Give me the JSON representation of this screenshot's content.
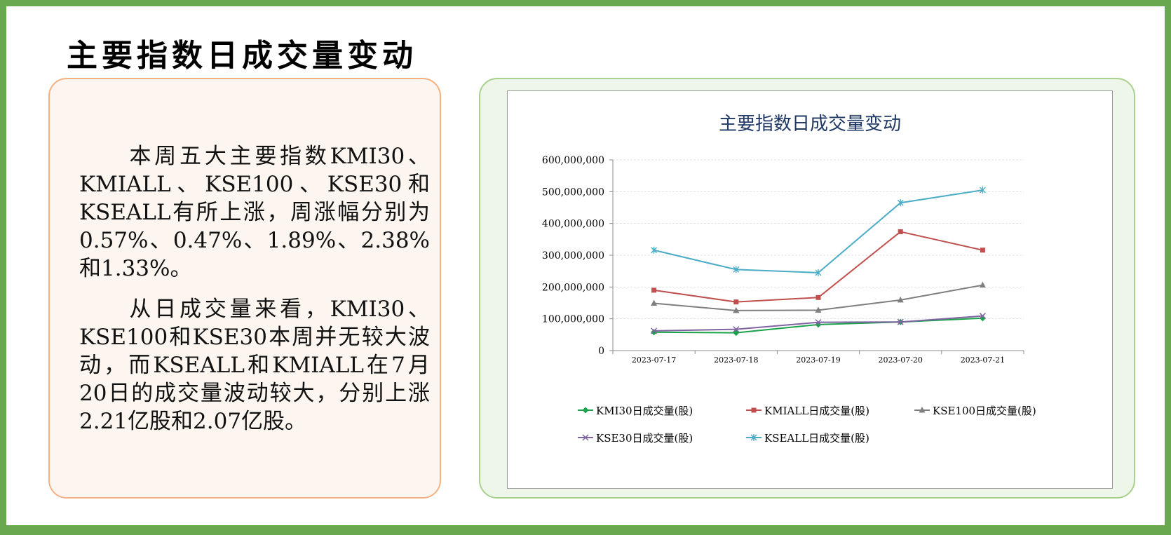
{
  "page": {
    "title": "主要指数日成交量变动"
  },
  "text_panel": {
    "paragraph1": "　　本周五大主要指数KMI30、KMIALL、KSE100、KSE30和KSEALL有所上涨，周涨幅分别为0.57%、0.47%、1.89%、2.38%和1.33%。",
    "paragraph2": "　　从日成交量来看，KMI30、KSE100和KSE30本周并无较大波动，而KSEALL和KMIALL在7月20日的成交量波动较大，分别上涨2.21亿股和2.07亿股。"
  },
  "chart_data": {
    "type": "line",
    "title": "主要指数日成交量变动",
    "xlabel": "",
    "ylabel": "",
    "categories": [
      "2023-07-17",
      "2023-07-18",
      "2023-07-19",
      "2023-07-20",
      "2023-07-21"
    ],
    "ylim": [
      0,
      600000000
    ],
    "yticks": [
      0,
      100000000,
      200000000,
      300000000,
      400000000,
      500000000,
      600000000
    ],
    "ytick_labels": [
      "0",
      "100,000,000",
      "200,000,000",
      "300,000,000",
      "400,000,000",
      "500,000,000",
      "600,000,000"
    ],
    "grid": true,
    "legend_position": "bottom",
    "series": [
      {
        "name": "KMI30日成交量(股)",
        "values": [
          58000000,
          56000000,
          82000000,
          90000000,
          102000000
        ],
        "color": "#1aa34a",
        "marker": "diamond"
      },
      {
        "name": "KMIALL日成交量(股)",
        "values": [
          190000000,
          153000000,
          167000000,
          374000000,
          316000000
        ],
        "color": "#c0504d",
        "marker": "square"
      },
      {
        "name": "KSE100日成交量(股)",
        "values": [
          149000000,
          126000000,
          127000000,
          159000000,
          206000000
        ],
        "color": "#7f7f7f",
        "marker": "triangle"
      },
      {
        "name": "KSE30日成交量(股)",
        "values": [
          62000000,
          67000000,
          89000000,
          90000000,
          109000000
        ],
        "color": "#8064a2",
        "marker": "x"
      },
      {
        "name": "KSEALL日成交量(股)",
        "values": [
          316000000,
          255000000,
          245000000,
          465000000,
          505000000
        ],
        "color": "#4bacc6",
        "marker": "star"
      }
    ]
  }
}
